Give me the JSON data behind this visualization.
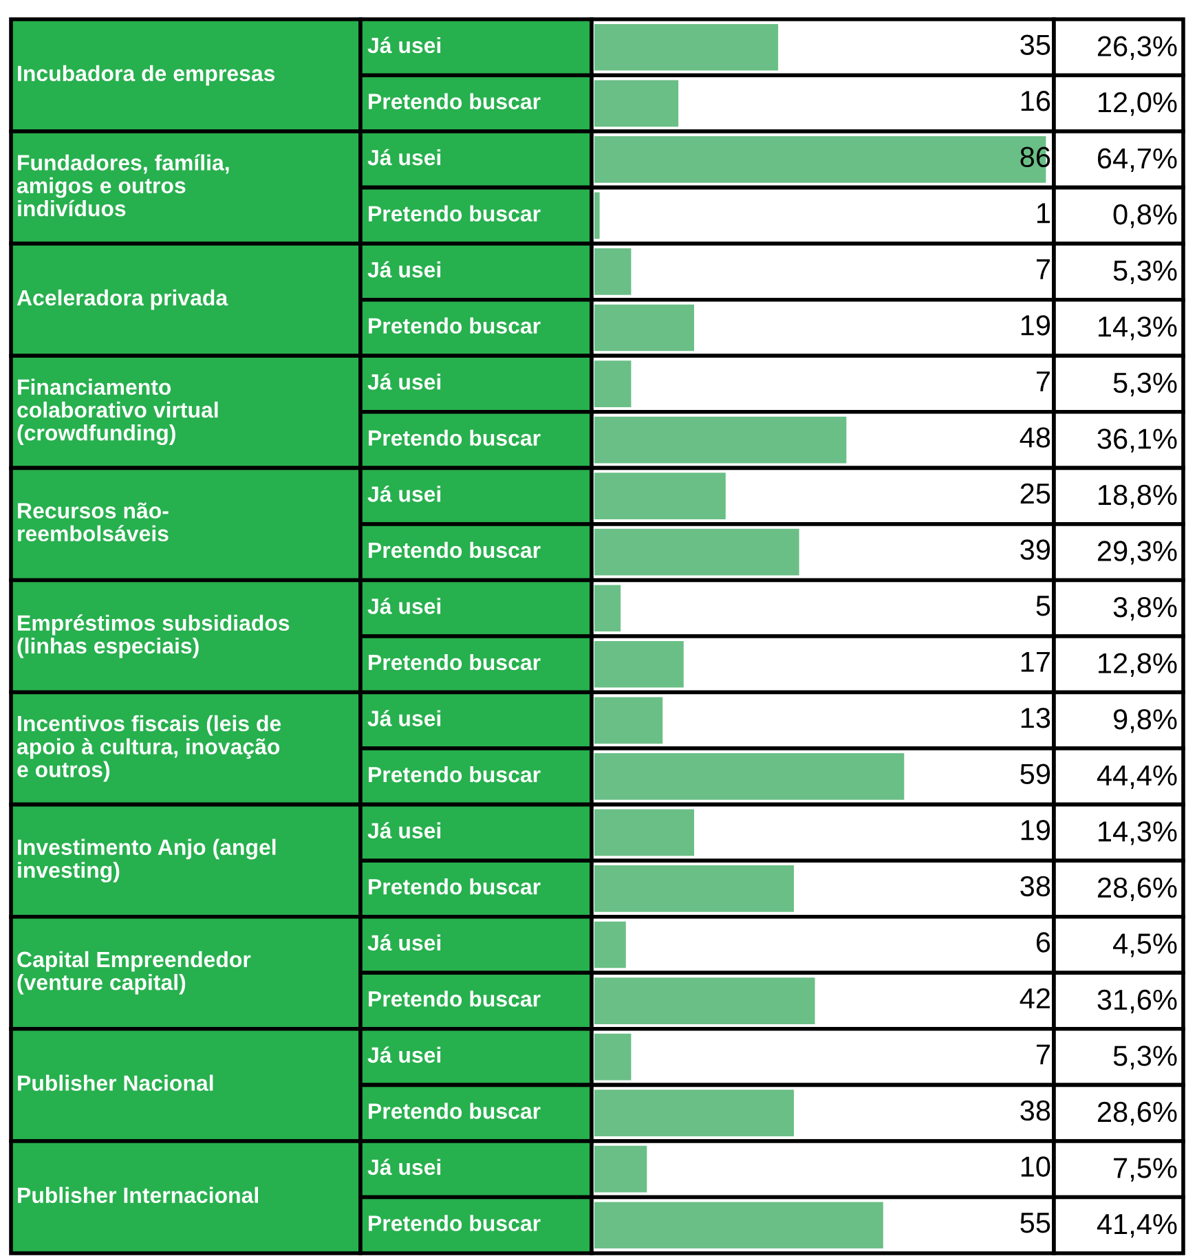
{
  "chart_data": {
    "type": "bar",
    "orientation": "horizontal",
    "data_labels": true,
    "xlim": [
      0,
      87
    ],
    "tick_labels": false,
    "grid": false,
    "legend": false,
    "categories": [
      "Já usei",
      "Pretendo buscar",
      "Já usei",
      "Pretendo buscar",
      "Já usei",
      "Pretendo buscar",
      "Já usei",
      "Pretendo buscar",
      "Já usei",
      "Pretendo buscar",
      "Já usei",
      "Pretendo buscar",
      "Já usei",
      "Pretendo buscar",
      "Já usei",
      "Pretendo buscar",
      "Já usei",
      "Pretendo buscar",
      "Já usei",
      "Pretendo buscar",
      "Já usei",
      "Pretendo buscar"
    ],
    "values": [
      35,
      16,
      86,
      1,
      7,
      19,
      7,
      48,
      25,
      39,
      5,
      17,
      13,
      59,
      19,
      38,
      6,
      42,
      7,
      38,
      10,
      55
    ],
    "color": "#6abf86",
    "annotations": [
      "Incubadora de empresas",
      "Fundadores, família,\namigos e outros\nindivíduos",
      "Aceleradora privada",
      "Financiamento\ncolaborativo virtual\n(crowdfunding)",
      "Recursos não-\nreembolsáveis",
      "Empréstimos subsidiados\n(linhas especiais)",
      "Incentivos fiscais (leis de\napoio à cultura, inovação\ne outros)",
      "Investimento Anjo (angel\ninvesting)",
      "Capital Empreendedor\n(venture capital)",
      "Publisher Nacional",
      "Publisher Internacional",
      "26,3%",
      "12,0%",
      "64,7%",
      "0,8%",
      "5,3%",
      "14,3%",
      "5,3%",
      "36,1%",
      "18,8%",
      "29,3%",
      "3,8%",
      "12,8%",
      "9,8%",
      "44,4%",
      "14,3%",
      "28,6%",
      "4,5%",
      "31,6%",
      "5,3%",
      "28,6%",
      "7,5%",
      "41,4%"
    ]
  }
}
